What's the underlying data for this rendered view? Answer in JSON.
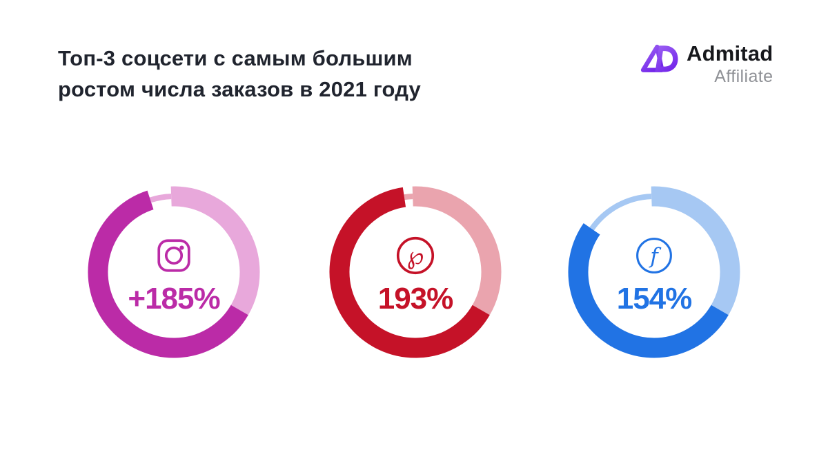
{
  "page": {
    "background": "#ffffff"
  },
  "header": {
    "title_line1": "Топ-3 соцсети с самым большим",
    "title_line2": "ростом числа заказов в 2021 году",
    "title_color": "#20242e"
  },
  "logo": {
    "brand": "Admitad",
    "subtitle": "Affiliate",
    "mark_color_start": "#9d63f3",
    "mark_color_end": "#7427ea",
    "brand_color": "#17181c",
    "subtitle_color": "#8f9196"
  },
  "chart_data": {
    "type": "pie",
    "subtype": "donut-rings",
    "title": "Топ-3 соцсети с самым большим ростом числа заказов в 2021 году",
    "unit": "рост числа заказов, %",
    "full_circle_value": 300,
    "junction_angle_deg": 120,
    "light_start_angle_deg": 358,
    "items": [
      {
        "network": "Instagram",
        "label": "+185%",
        "value": 185,
        "dark": "#bb2ba7",
        "light": "#e8a8db",
        "icon": "instagram-icon"
      },
      {
        "network": "Pinterest",
        "label": "193%",
        "value": 193,
        "dark": "#c51228",
        "light": "#eaa4ae",
        "icon": "pinterest-icon"
      },
      {
        "network": "Facebook",
        "label": "154%",
        "value": 154,
        "dark": "#2173e4",
        "light": "#a6c8f3",
        "icon": "facebook-icon"
      }
    ]
  }
}
